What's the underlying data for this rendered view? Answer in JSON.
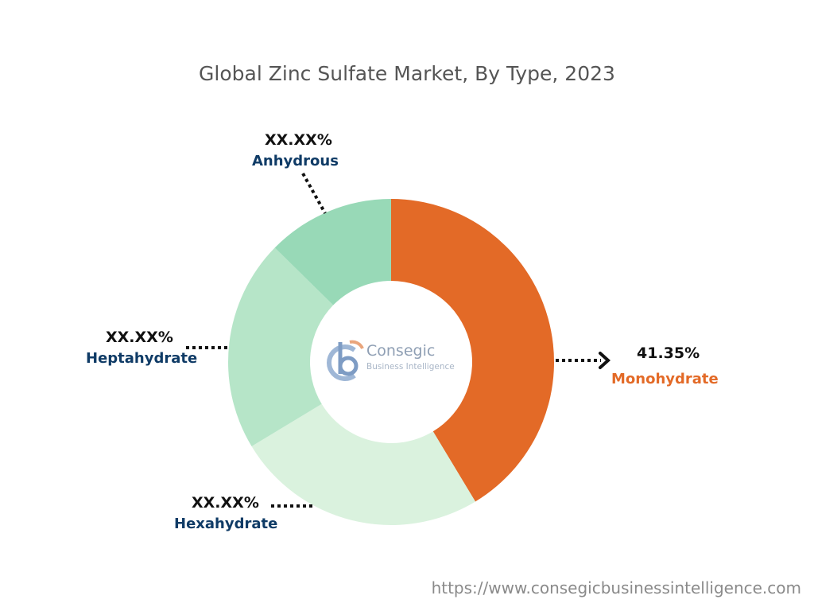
{
  "chart_data": {
    "type": "donut",
    "title": "Global Zinc Sulfate Market, By Type, 2023",
    "slices": [
      {
        "label": "Monohydrate",
        "value": 41.35,
        "display": "41.35%",
        "color": "#E36A27",
        "label_color": "#E36A27"
      },
      {
        "label": "Hexahydrate",
        "value": 25.0,
        "display": "XX.XX%",
        "color": "#DAF2DE",
        "label_color": "#0F3B66"
      },
      {
        "label": "Heptahydrate",
        "value": 21.0,
        "display": "XX.XX%",
        "color": "#B6E5C8",
        "label_color": "#0F3B66"
      },
      {
        "label": "Anhydrous",
        "value": 12.65,
        "display": "XX.XX%",
        "color": "#98D9B7",
        "label_color": "#0F3B66"
      }
    ],
    "start": "12 o'clock",
    "direction": "clockwise"
  },
  "logo": {
    "name": "Consegic",
    "tagline": "Business Intelligence",
    "colors": {
      "c_blue": "#9FB7D6",
      "b_blue": "#7E9CC4",
      "orange": "#E9A57C"
    }
  },
  "footer": {
    "url": "https://www.consegicbusinessintelligence.com"
  }
}
